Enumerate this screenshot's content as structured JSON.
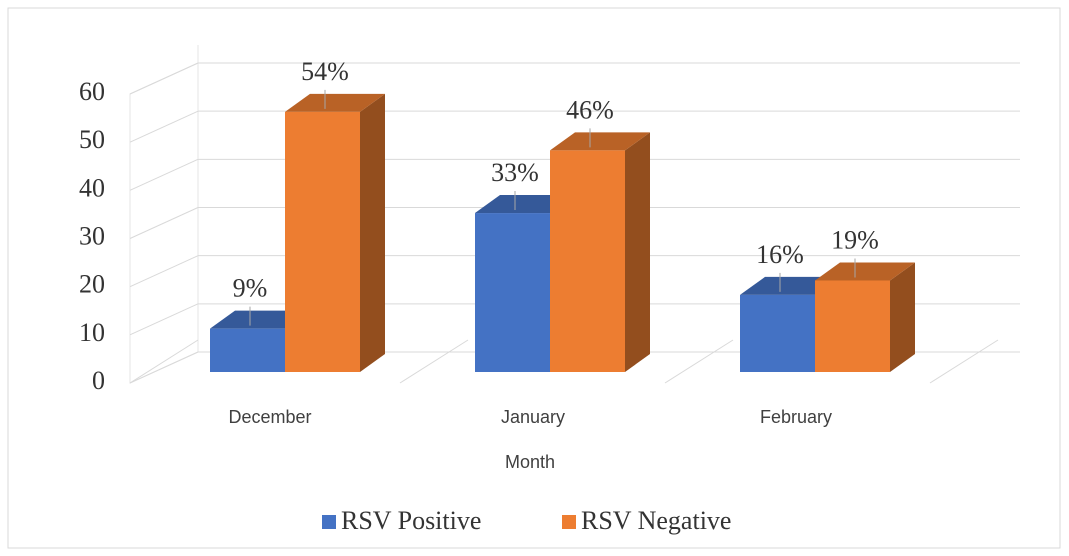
{
  "chart_data": {
    "type": "bar3d",
    "x_label": "Month",
    "categories": [
      "December",
      "January",
      "February"
    ],
    "series": [
      {
        "name": "RSV Positive",
        "color": "#4472c4",
        "values": [
          9,
          33,
          16
        ],
        "value_labels": [
          "9%",
          "33%",
          "16%"
        ]
      },
      {
        "name": "RSV Negative",
        "color": "#ed7d31",
        "values": [
          54,
          46,
          19
        ],
        "value_labels": [
          "54%",
          "46%",
          "19%"
        ]
      }
    ],
    "ylim": [
      0,
      60
    ],
    "yticks": [
      0,
      10,
      20,
      30,
      40,
      50,
      60
    ],
    "grid": true,
    "legend": "bottom"
  }
}
